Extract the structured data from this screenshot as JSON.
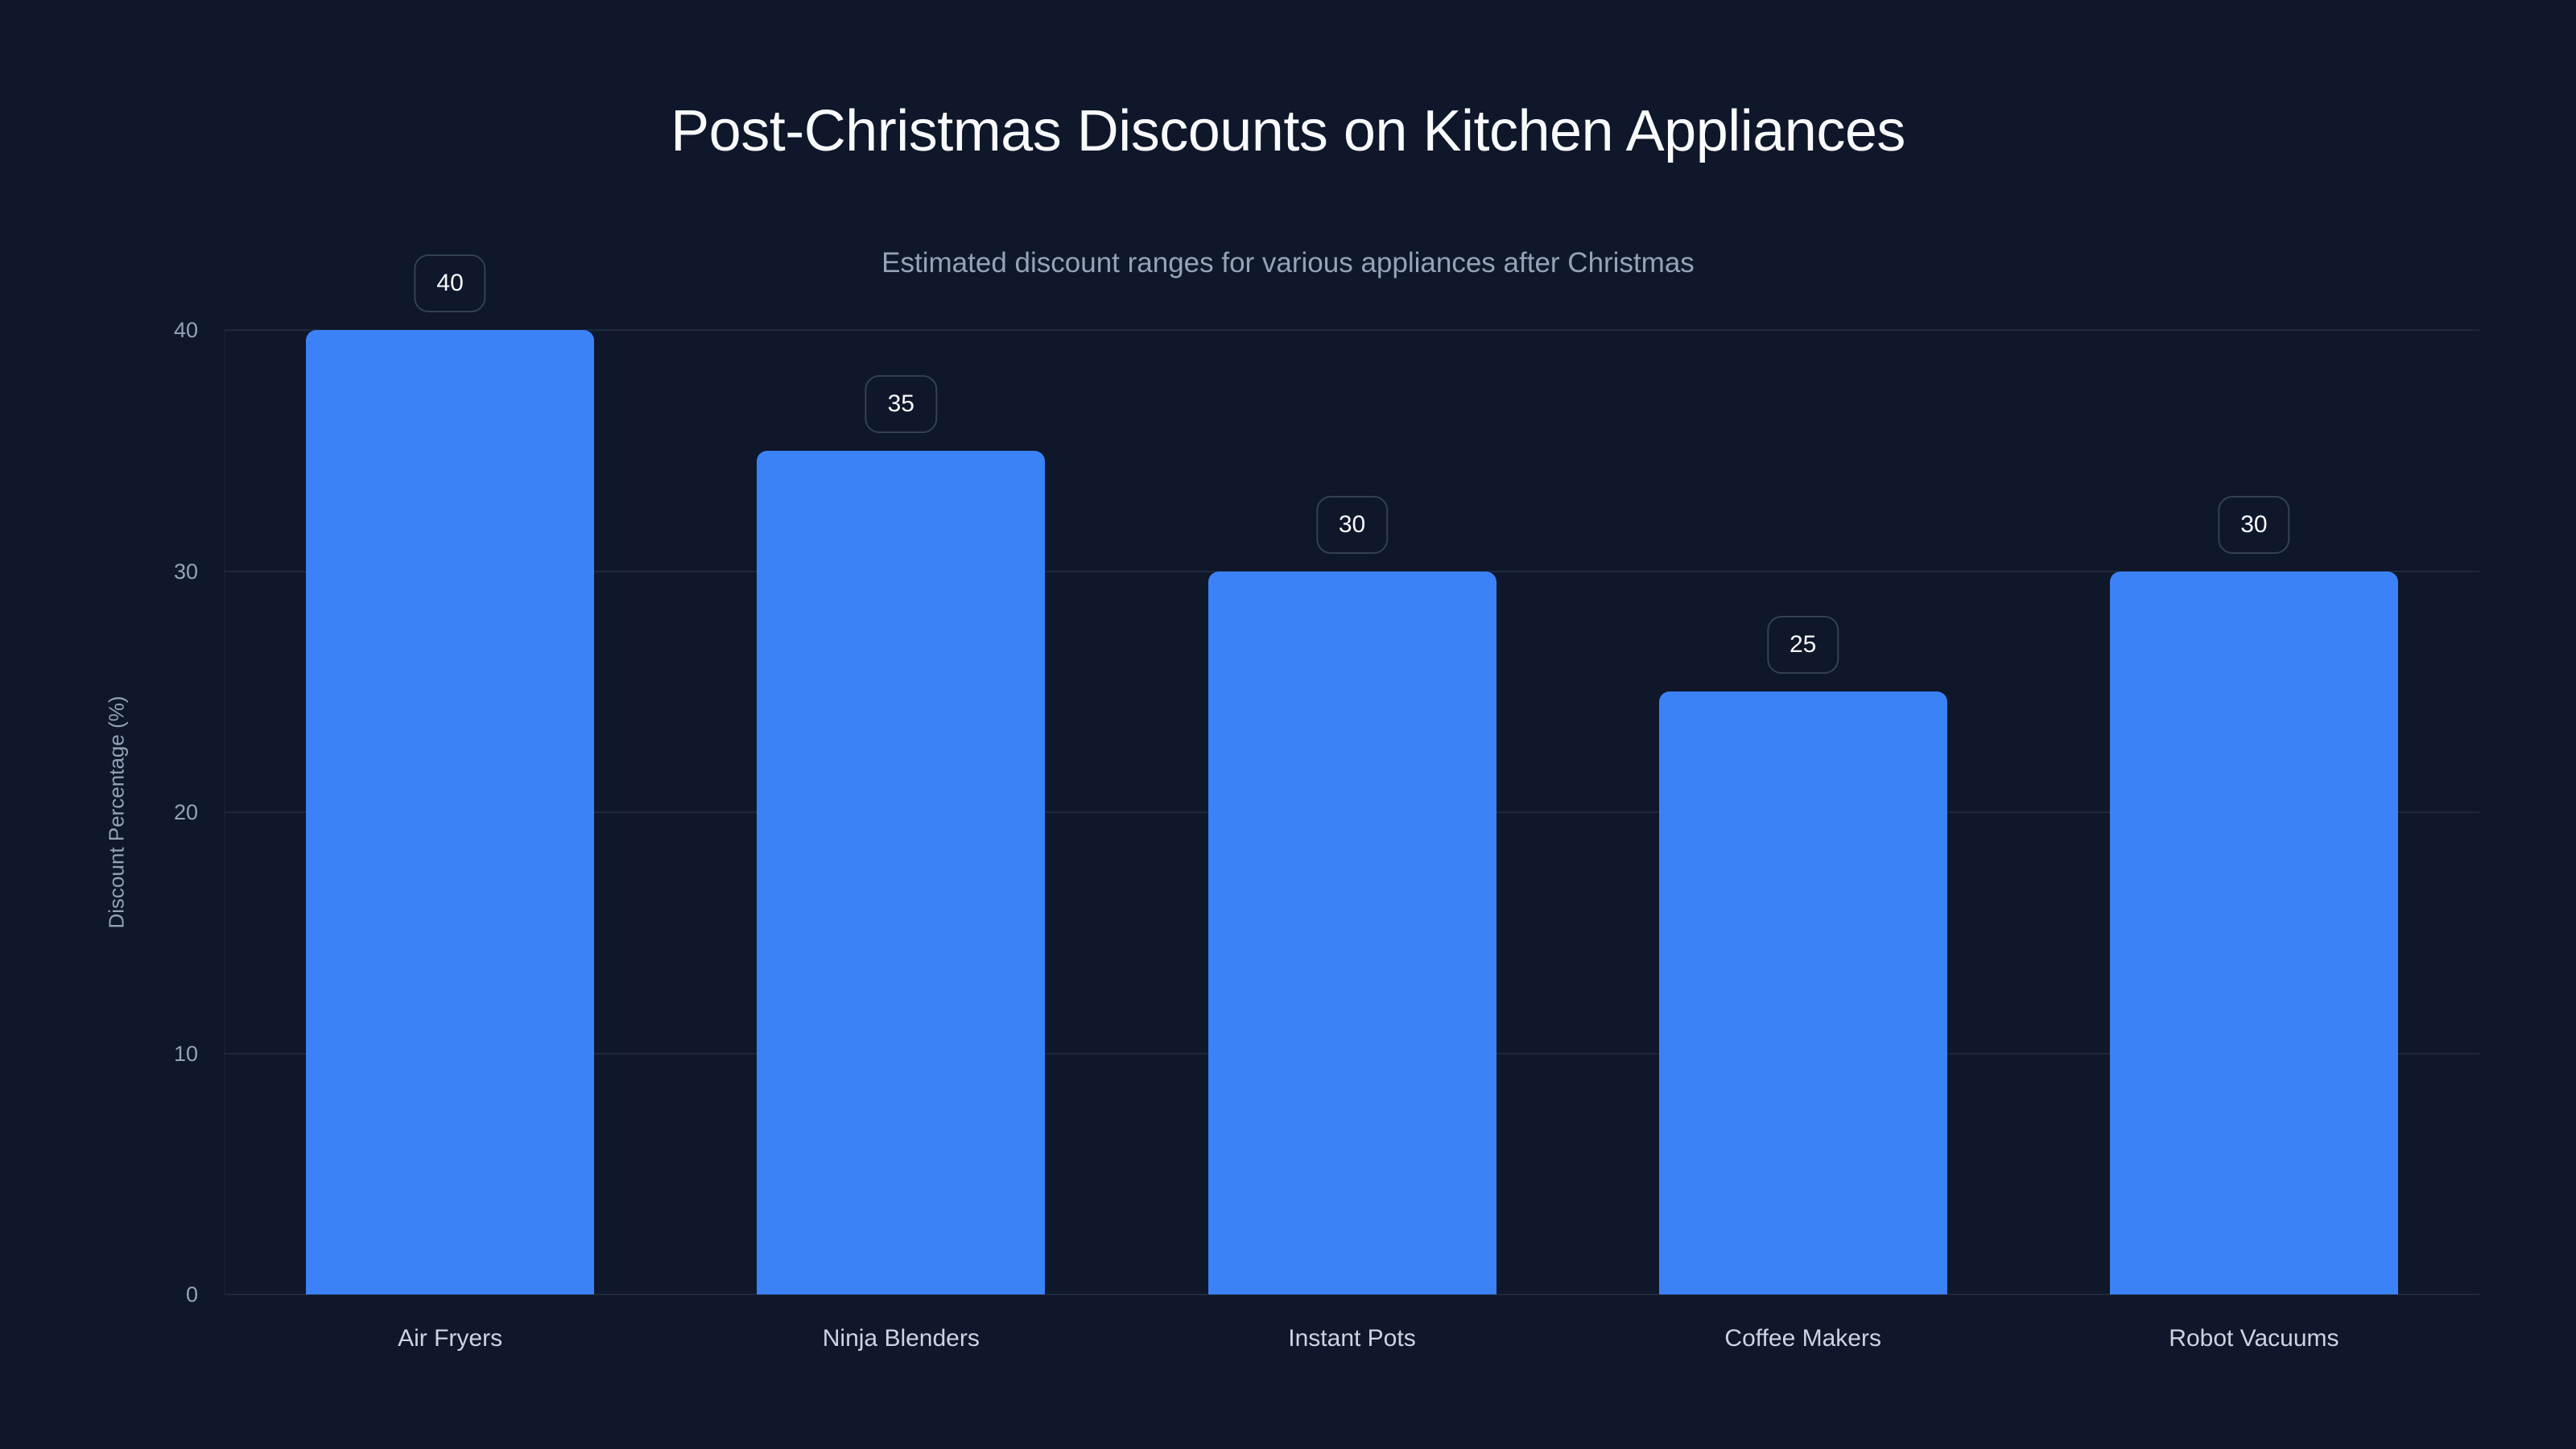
{
  "title": "Post-Christmas Discounts on Kitchen Appliances",
  "subtitle": "Estimated discount ranges for various appliances after Christmas",
  "colors": {
    "background": "#0F172A",
    "bar": "#3B82F6",
    "grid": "#1E293B",
    "badge_border": "#334155",
    "title": "#F8FAFC",
    "muted_text": "#94A3B8",
    "label_text": "#CBD5E1"
  },
  "chart_data": {
    "type": "bar",
    "title": "Post-Christmas Discounts on Kitchen Appliances",
    "subtitle": "Estimated discount ranges for various appliances after Christmas",
    "xlabel": "",
    "ylabel": "Discount Percentage (%)",
    "categories": [
      "Air Fryers",
      "Ninja Blenders",
      "Instant Pots",
      "Coffee Makers",
      "Robot Vacuums"
    ],
    "values": [
      40,
      35,
      30,
      25,
      30
    ],
    "value_labels": [
      "40",
      "35",
      "30",
      "25",
      "30"
    ],
    "ylim": [
      0,
      40
    ],
    "yticks": [
      "0",
      "10",
      "20",
      "30",
      "40"
    ],
    "ytick_values": [
      0,
      10,
      20,
      30,
      40
    ],
    "grid": true,
    "legend": null,
    "data_labels": true
  }
}
